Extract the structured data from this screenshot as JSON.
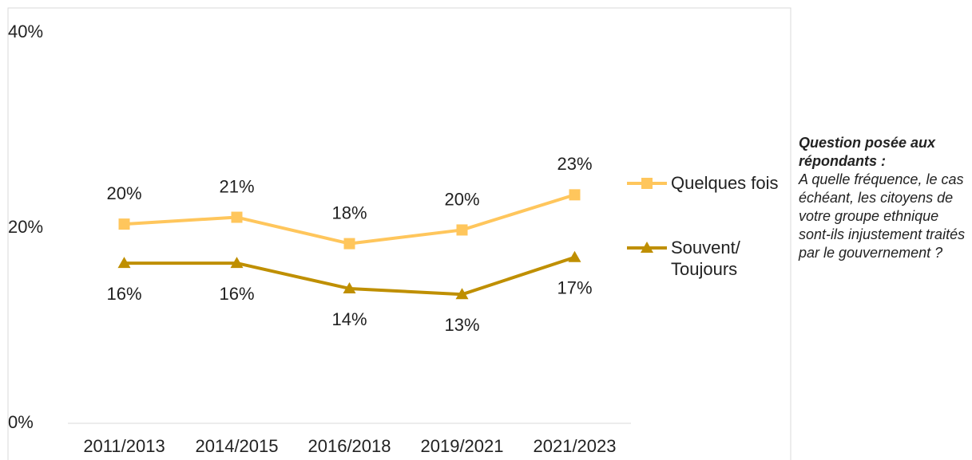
{
  "chart_data": {
    "type": "line",
    "categories": [
      "2011/2013",
      "2014/2015",
      "2016/2018",
      "2019/2021",
      "2021/2023"
    ],
    "series": [
      {
        "name": "Quelques fois",
        "color": "#FFC65C",
        "marker": "square",
        "label_position": "above",
        "values": [
          20.4,
          21.1,
          18.4,
          19.8,
          23.4
        ],
        "value_labels": [
          "20%",
          "21%",
          "18%",
          "20%",
          "23%"
        ]
      },
      {
        "name": "Souvent/ Toujours",
        "color": "#BF8F00",
        "marker": "triangle",
        "label_position": "below",
        "values": [
          16.4,
          16.4,
          13.8,
          13.2,
          17.0
        ],
        "value_labels": [
          "16%",
          "16%",
          "14%",
          "13%",
          "17%"
        ]
      }
    ],
    "ylim": [
      0,
      40
    ],
    "yticks": [
      {
        "value": 0,
        "label": "0%"
      },
      {
        "value": 20,
        "label": "20%"
      },
      {
        "value": 40,
        "label": "40%"
      }
    ],
    "legend": "right",
    "note_title": "Question posée aux répondants :",
    "note": "A quelle fréquence, le cas échéant, les citoyens de votre groupe ethnique sont-ils injustement traités par le gouvernement ?"
  }
}
